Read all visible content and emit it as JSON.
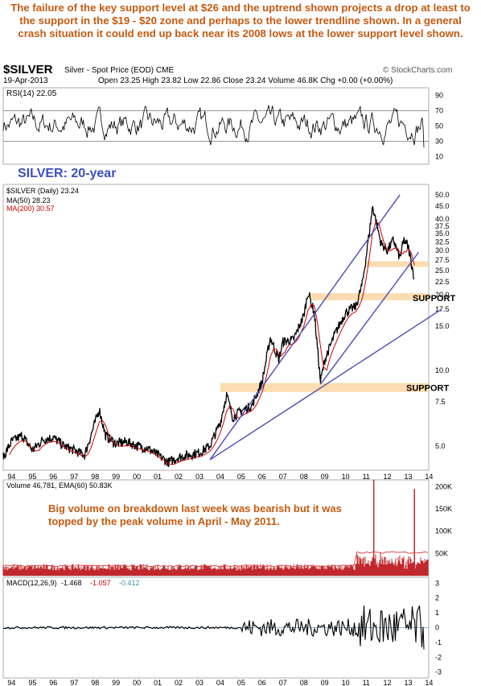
{
  "annotation_top": "The failure of the key support level at $26 and the uptrend shown projects a drop at least to the support in the $19 - $20 zone and perhaps to the lower trendline shown. In a general crash situation it could end up back near its 2008 lows at the lower support level shown.",
  "annotation_volume": "Big volume on breakdown last week was bearish but it was topped by the peak volume in April - May 2011.",
  "header": {
    "symbol": "$SILVER",
    "desc": "Silver - Spot Price (EOD)  CME",
    "source": "© StockCharts.com",
    "date": "19-Apr-2013",
    "quote": "Open 23.25  High 23.82  Low 22.86  Close 23.24  Volume 46.8K  Chg +0.00 (+0.00%)"
  },
  "chart_data": [
    {
      "type": "line",
      "panel": "rsi",
      "legend": "RSI(14) 22.05",
      "yticks": [
        10,
        30,
        50,
        70,
        90
      ],
      "reference_lines": [
        30,
        70
      ],
      "ylim": [
        0,
        100
      ],
      "label": "SILVER: 20-year"
    },
    {
      "type": "line",
      "panel": "price",
      "scale": "log",
      "ylim": [
        4.0,
        55
      ],
      "yticks": [
        5.0,
        7.5,
        10.0,
        15.0,
        17.5,
        20.0,
        22.5,
        25.0,
        27.5,
        30.0,
        32.5,
        35.0,
        37.5,
        40.0,
        45.0,
        50.0
      ],
      "xlabels": [
        "94",
        "95",
        "96",
        "97",
        "98",
        "99",
        "00",
        "01",
        "02",
        "03",
        "04",
        "05",
        "06",
        "07",
        "08",
        "09",
        "10",
        "11",
        "12",
        "13",
        "14"
      ],
      "xlim": [
        1993.6,
        2014.6
      ],
      "series": [
        {
          "name": "$SILVER (Daily) 23.24",
          "color": "#000000",
          "x": [
            1993.6,
            1994.0,
            1994.5,
            1995.0,
            1995.5,
            1996.0,
            1996.5,
            1997.0,
            1997.5,
            1998.0,
            1998.2,
            1998.5,
            1999.0,
            1999.5,
            2000.0,
            2000.5,
            2001.0,
            2001.5,
            2002.0,
            2002.5,
            2003.0,
            2003.5,
            2004.0,
            2004.3,
            2004.6,
            2005.0,
            2005.5,
            2006.0,
            2006.4,
            2006.8,
            2007.0,
            2007.5,
            2008.0,
            2008.2,
            2008.5,
            2008.8,
            2009.0,
            2009.5,
            2010.0,
            2010.5,
            2010.8,
            2011.0,
            2011.3,
            2011.5,
            2011.7,
            2012.0,
            2012.3,
            2012.6,
            2012.8,
            2013.0,
            2013.3
          ],
          "y": [
            4.5,
            5.2,
            5.5,
            4.8,
            5.3,
            5.4,
            5.0,
            4.8,
            4.6,
            6.2,
            7.0,
            5.5,
            5.1,
            5.2,
            5.0,
            4.9,
            4.6,
            4.3,
            4.5,
            4.6,
            4.7,
            5.0,
            6.2,
            8.0,
            6.5,
            6.9,
            7.2,
            9.0,
            13.5,
            11.0,
            13.0,
            13.2,
            16.5,
            20.5,
            17.0,
            9.0,
            11.0,
            14.0,
            17.0,
            18.0,
            22.0,
            29.0,
            45.0,
            38.0,
            32.0,
            30.0,
            33.0,
            28.0,
            33.0,
            31.0,
            23.24
          ]
        },
        {
          "name": "MA(50) 28.23",
          "color": "#000000",
          "values_note": "50-day moving average"
        },
        {
          "name": "MA(200) 30.57",
          "color": "#cc0000",
          "values_note": "200-day moving average"
        }
      ],
      "support_zones": [
        {
          "label": "SUPPORT",
          "range": [
            19.0,
            20.3
          ]
        },
        {
          "label": "SUPPORT",
          "range": [
            8.2,
            8.9
          ]
        },
        {
          "label": "",
          "range": [
            25.8,
            27.2
          ]
        }
      ],
      "trendlines": [
        {
          "from": [
            2003.5,
            4.4
          ],
          "to": [
            2012.6,
            50.0
          ]
        },
        {
          "from": [
            2008.8,
            8.8
          ],
          "to": [
            2013.5,
            29.5
          ]
        },
        {
          "from": [
            2003.5,
            4.4
          ],
          "to": [
            2014.6,
            17.5
          ]
        }
      ]
    },
    {
      "type": "bar",
      "panel": "volume",
      "legend": "Volume 46,781, EMA(60) 50.83K",
      "yticks": [
        "50K",
        "100K",
        "150K",
        "200K"
      ],
      "ylim": [
        0,
        215000
      ],
      "peaks": [
        {
          "x": 2011.35,
          "value": 215000
        },
        {
          "x": 2013.3,
          "value": 195000
        }
      ]
    },
    {
      "type": "line",
      "panel": "macd",
      "legend_label": "MACD(12,26,9)",
      "legend_values": [
        "-1.468",
        "-1.057",
        "-0.412"
      ],
      "legend_colors": [
        "#000000",
        "#cc0000",
        "#3a8fb7"
      ],
      "yticks": [
        3,
        2,
        1,
        0,
        -1,
        -2,
        -3
      ],
      "ylim": [
        -3.4,
        3.4
      ]
    }
  ],
  "colors": {
    "support_band": "#fbd7a3",
    "trendline": "#4a4ab8",
    "price": "#000000",
    "ma200": "#cc0000",
    "volume": "#c0282d",
    "label_blue": "#3b4fc4",
    "annotation": "#c55a11"
  }
}
